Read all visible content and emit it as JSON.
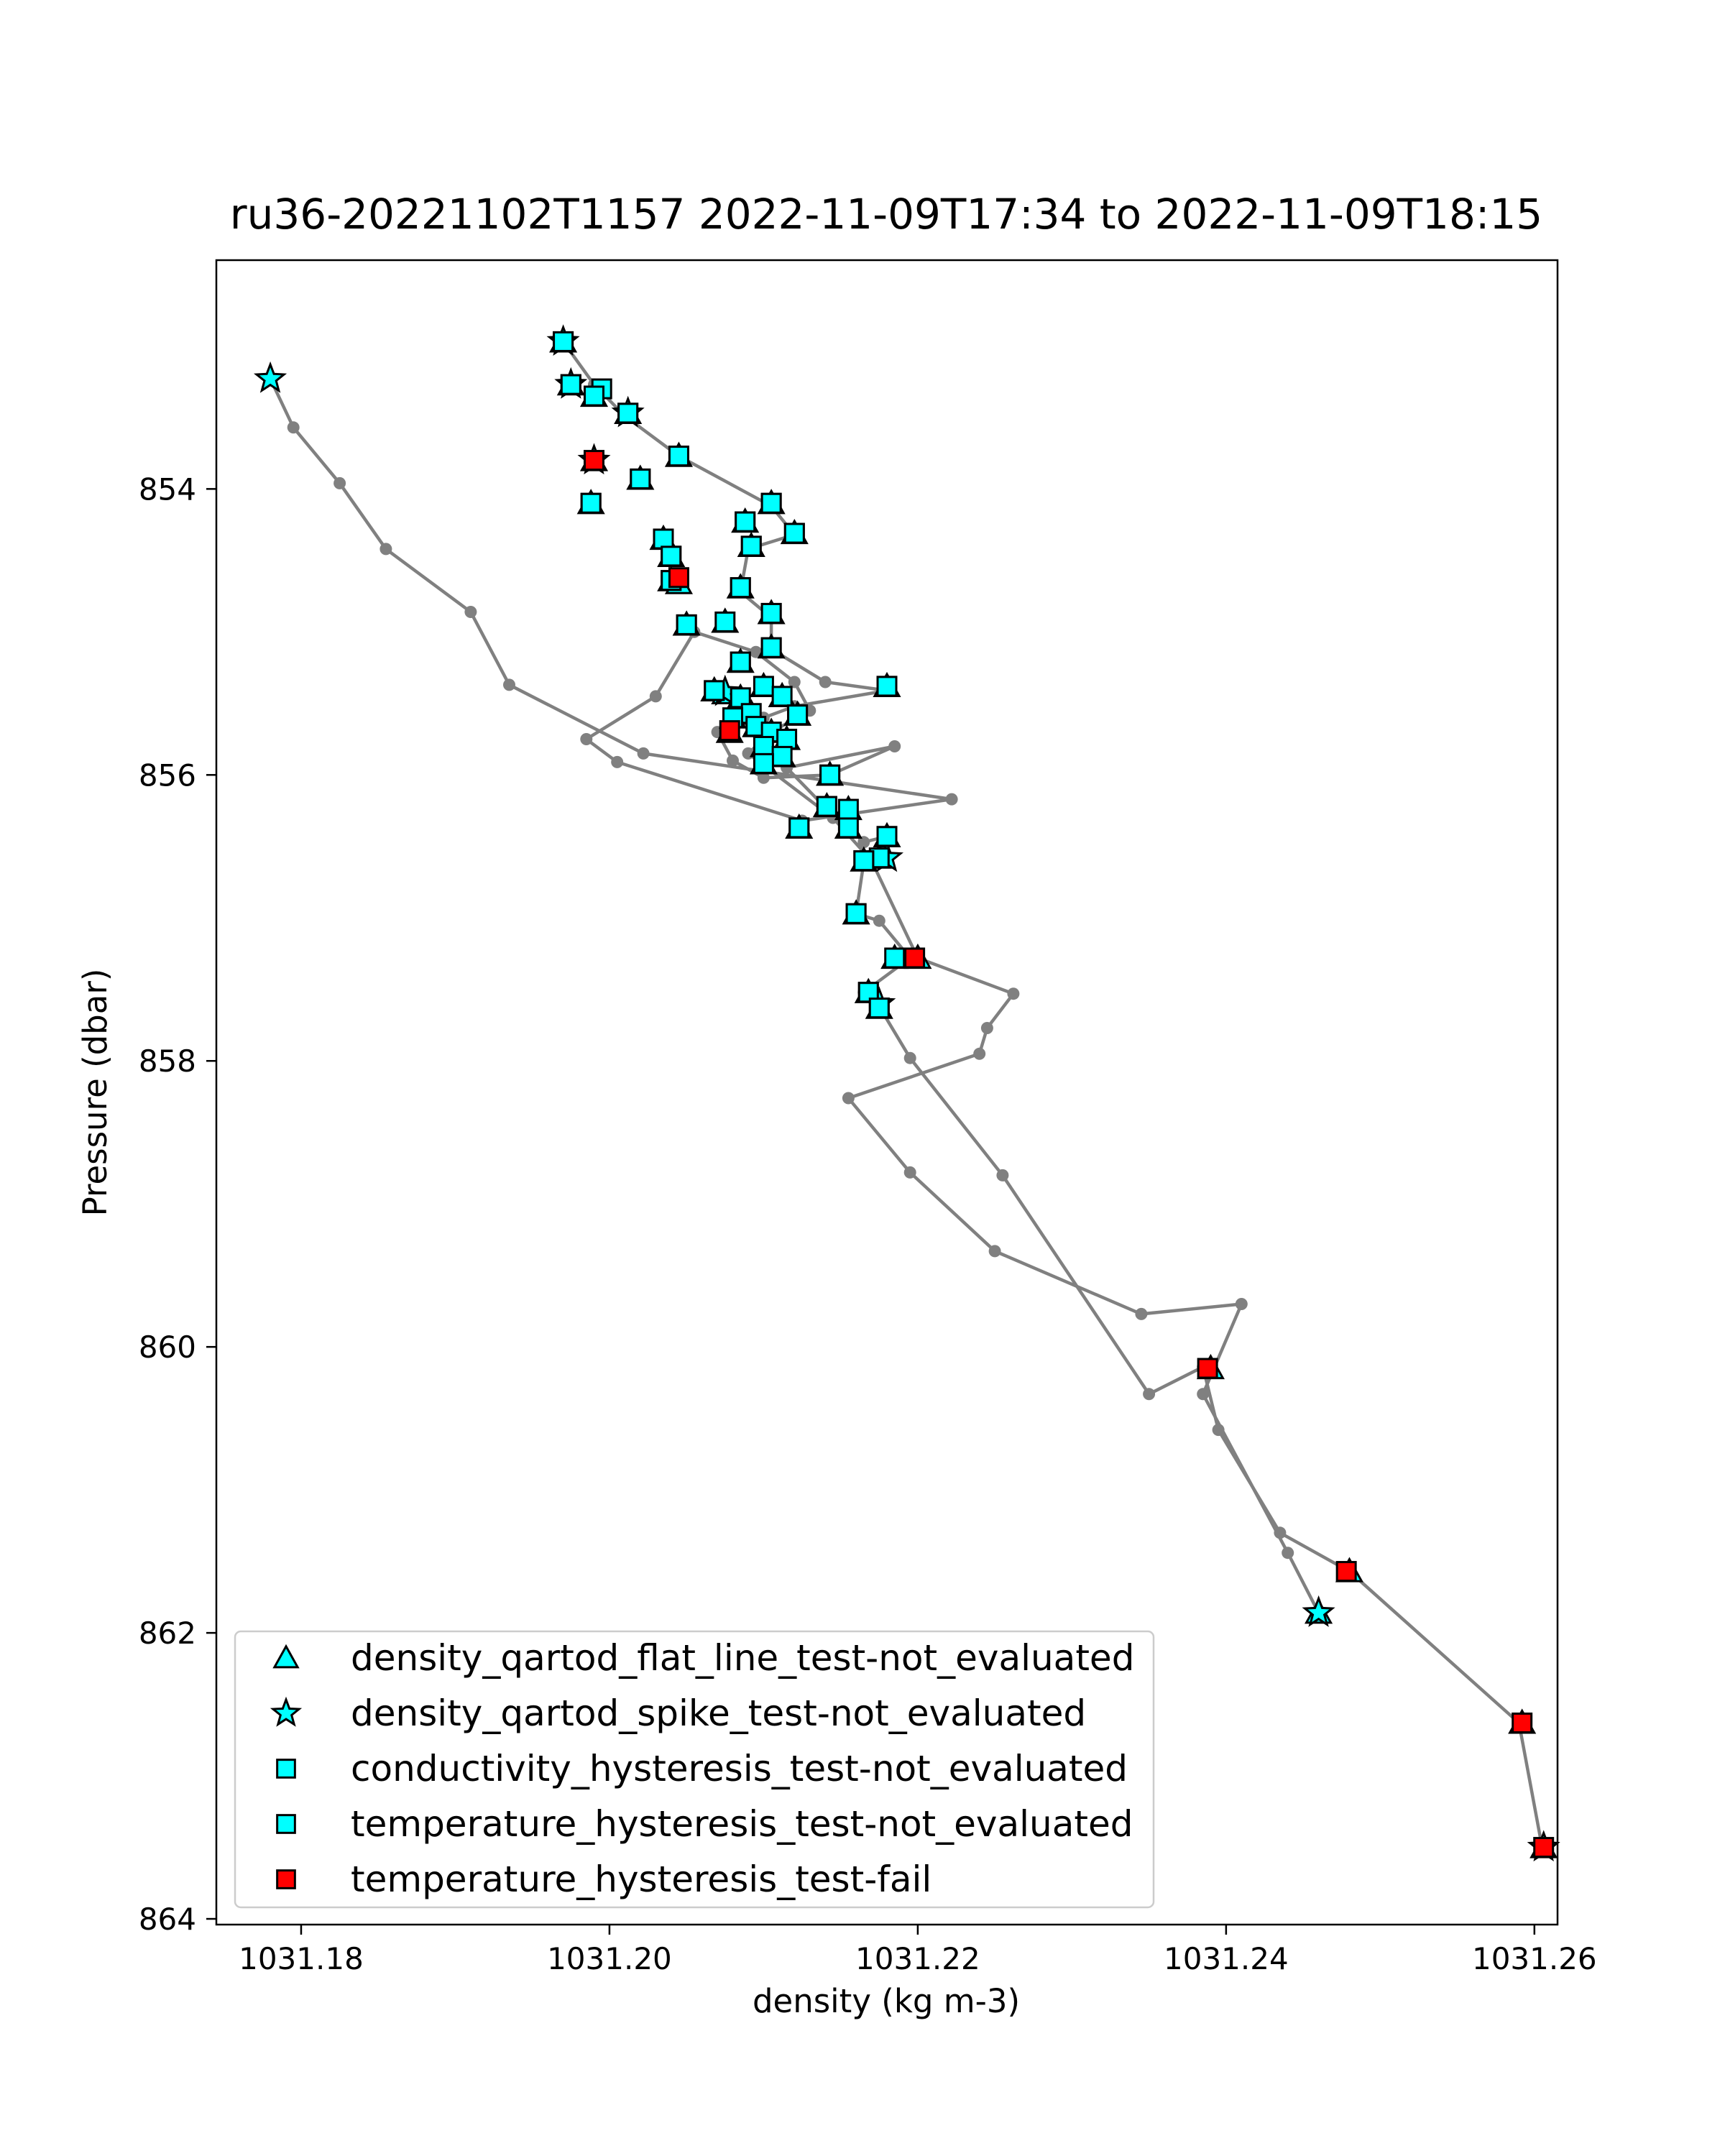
{
  "chart_data": {
    "type": "scatter",
    "title": "ru36-20221102T1157 2022-11-09T17:34 to 2022-11-09T18:15",
    "xlabel": "density (kg m-3)",
    "ylabel": "Pressure (dbar)",
    "xlim": [
      1031.1745,
      1031.2615
    ],
    "ylim": [
      864.04,
      852.4
    ],
    "y_inverted": true,
    "x_ticks": [
      1031.18,
      1031.2,
      1031.22,
      1031.24,
      1031.26
    ],
    "x_tick_labels": [
      "1031.18",
      "1031.20",
      "1031.22",
      "1031.24",
      "1031.26"
    ],
    "y_ticks": [
      854,
      856,
      858,
      860,
      862,
      864
    ],
    "y_tick_labels": [
      "854",
      "856",
      "858",
      "860",
      "862",
      "864"
    ],
    "grid": false,
    "legend_position": "lower-left",
    "colors": {
      "line": "#808080",
      "cyan": "#00ffff",
      "red": "#ff0000",
      "edge": "#000000"
    },
    "profile": {
      "name": "density",
      "points": [
        [
          1031.178,
          853.23
        ],
        [
          1031.1795,
          853.57
        ],
        [
          1031.1825,
          853.96
        ],
        [
          1031.1855,
          854.42
        ],
        [
          1031.191,
          854.86
        ],
        [
          1031.1935,
          855.37
        ],
        [
          1031.2022,
          855.85
        ],
        [
          1031.2222,
          856.17
        ],
        [
          1031.2125,
          856.32
        ],
        [
          1031.2005,
          855.91
        ],
        [
          1031.1985,
          855.75
        ],
        [
          1031.203,
          855.45
        ],
        [
          1031.2055,
          855.0
        ],
        [
          1031.2095,
          855.14
        ],
        [
          1031.212,
          855.35
        ],
        [
          1031.213,
          855.55
        ],
        [
          1031.2105,
          855.7
        ],
        [
          1031.209,
          855.85
        ],
        [
          1031.2145,
          856.3
        ],
        [
          1031.217,
          856.6
        ],
        [
          1031.22,
          857.28
        ],
        [
          1031.2262,
          857.53
        ],
        [
          1031.2245,
          857.77
        ],
        [
          1031.224,
          857.95
        ],
        [
          1031.2155,
          858.26
        ],
        [
          1031.2195,
          858.78
        ],
        [
          1031.225,
          859.33
        ],
        [
          1031.2345,
          859.77
        ],
        [
          1031.241,
          859.7
        ],
        [
          1031.2385,
          860.33
        ],
        [
          1031.244,
          861.44
        ],
        [
          1031.246,
          861.86
        ]
      ],
      "points_descent": [
        [
          1031.197,
          852.97
        ],
        [
          1031.199,
          853.27
        ],
        [
          1031.201,
          853.49
        ],
        [
          1031.2045,
          853.77
        ],
        [
          1031.2105,
          854.12
        ],
        [
          1031.212,
          854.32
        ],
        [
          1031.209,
          854.42
        ],
        [
          1031.2085,
          854.72
        ],
        [
          1031.2105,
          854.9
        ],
        [
          1031.2105,
          855.12
        ],
        [
          1031.214,
          855.35
        ],
        [
          1031.218,
          855.41
        ],
        [
          1031.212,
          855.52
        ],
        [
          1031.21,
          855.6
        ],
        [
          1031.207,
          855.7
        ],
        [
          1031.208,
          855.9
        ],
        [
          1031.21,
          856.02
        ],
        [
          1031.2143,
          856.0
        ],
        [
          1031.2185,
          855.8
        ],
        [
          1031.2115,
          855.95
        ],
        [
          1031.2142,
          856.25
        ],
        [
          1031.2155,
          856.37
        ],
        [
          1031.2165,
          856.47
        ],
        [
          1031.218,
          856.43
        ],
        [
          1031.2175,
          856.58
        ],
        [
          1031.2165,
          856.61
        ],
        [
          1031.216,
          856.97
        ],
        [
          1031.2175,
          857.02
        ],
        [
          1031.2195,
          857.28
        ],
        [
          1031.2165,
          857.52
        ],
        [
          1031.2175,
          857.62
        ],
        [
          1031.2195,
          857.98
        ],
        [
          1031.2255,
          858.8
        ],
        [
          1031.235,
          860.33
        ],
        [
          1031.2385,
          860.14
        ],
        [
          1031.2395,
          860.58
        ],
        [
          1031.2435,
          861.3
        ],
        [
          1031.248,
          861.57
        ],
        [
          1031.259,
          862.63
        ],
        [
          1031.2605,
          863.5
        ]
      ]
    },
    "series": [
      {
        "name": "density_qartod_flat_line_test-not_evaluated",
        "marker": "triangle",
        "color": "#00ffff",
        "points": [
          [
            1031.197,
            852.97
          ],
          [
            1031.1975,
            853.27
          ],
          [
            1031.199,
            853.35
          ],
          [
            1031.2012,
            853.47
          ],
          [
            1031.199,
            853.8
          ],
          [
            1031.1988,
            854.1
          ],
          [
            1031.202,
            853.93
          ],
          [
            1031.2045,
            853.77
          ],
          [
            1031.2105,
            854.1
          ],
          [
            1031.2088,
            854.23
          ],
          [
            1031.2092,
            854.4
          ],
          [
            1031.212,
            854.31
          ],
          [
            1031.2035,
            854.35
          ],
          [
            1031.204,
            854.47
          ],
          [
            1031.204,
            854.64
          ],
          [
            1031.2045,
            854.66
          ],
          [
            1031.2085,
            854.69
          ],
          [
            1031.2105,
            854.87
          ],
          [
            1031.205,
            854.95
          ],
          [
            1031.2075,
            854.93
          ],
          [
            1031.2105,
            855.11
          ],
          [
            1031.2085,
            855.21
          ],
          [
            1031.2068,
            855.41
          ],
          [
            1031.2075,
            855.43
          ],
          [
            1031.2085,
            855.46
          ],
          [
            1031.21,
            855.38
          ],
          [
            1031.2112,
            855.45
          ],
          [
            1031.218,
            855.38
          ],
          [
            1031.2092,
            855.57
          ],
          [
            1031.2122,
            855.58
          ],
          [
            1031.208,
            855.6
          ],
          [
            1031.2095,
            855.66
          ],
          [
            1031.2105,
            855.7
          ],
          [
            1031.2115,
            855.75
          ],
          [
            1031.2078,
            855.7
          ],
          [
            1031.21,
            855.8
          ],
          [
            1031.2112,
            855.87
          ],
          [
            1031.21,
            855.92
          ],
          [
            1031.2143,
            856.0
          ],
          [
            1031.2141,
            856.22
          ],
          [
            1031.2155,
            856.24
          ],
          [
            1031.2123,
            856.37
          ],
          [
            1031.2155,
            856.37
          ],
          [
            1031.218,
            856.43
          ],
          [
            1031.2175,
            856.58
          ],
          [
            1031.2165,
            856.6
          ],
          [
            1031.216,
            856.97
          ],
          [
            1031.22,
            857.28
          ],
          [
            1031.2185,
            857.28
          ],
          [
            1031.2168,
            857.52
          ],
          [
            1031.2175,
            857.63
          ],
          [
            1031.239,
            860.15
          ],
          [
            1031.246,
            861.86
          ],
          [
            1031.248,
            861.57
          ],
          [
            1031.2592,
            862.63
          ],
          [
            1031.2606,
            863.5
          ]
        ]
      },
      {
        "name": "density_qartod_spike_test-not_evaluated",
        "marker": "star",
        "color": "#00ffff",
        "points": [
          [
            1031.178,
            853.23
          ],
          [
            1031.197,
            852.97
          ],
          [
            1031.1975,
            853.27
          ],
          [
            1031.2012,
            853.47
          ],
          [
            1031.199,
            853.8
          ],
          [
            1031.2075,
            855.42
          ],
          [
            1031.218,
            856.58
          ],
          [
            1031.2175,
            857.6
          ],
          [
            1031.246,
            861.86
          ],
          [
            1031.2606,
            863.5
          ]
        ]
      },
      {
        "name": "conductivity_hysteresis_test-not_evaluated",
        "marker": "square",
        "color": "#00ffff",
        "points": [
          [
            1031.197,
            852.97
          ],
          [
            1031.1975,
            853.27
          ],
          [
            1031.199,
            853.35
          ],
          [
            1031.1995,
            853.3
          ],
          [
            1031.2012,
            853.47
          ],
          [
            1031.2045,
            853.77
          ],
          [
            1031.202,
            853.93
          ],
          [
            1031.1988,
            854.1
          ],
          [
            1031.2105,
            854.1
          ],
          [
            1031.2088,
            854.23
          ],
          [
            1031.212,
            854.31
          ],
          [
            1031.2035,
            854.35
          ],
          [
            1031.2092,
            854.4
          ],
          [
            1031.204,
            854.47
          ],
          [
            1031.204,
            854.64
          ],
          [
            1031.2085,
            854.69
          ],
          [
            1031.2105,
            854.87
          ],
          [
            1031.205,
            854.95
          ],
          [
            1031.2075,
            854.93
          ],
          [
            1031.2105,
            855.11
          ],
          [
            1031.2085,
            855.21
          ],
          [
            1031.2068,
            855.41
          ],
          [
            1031.2085,
            855.46
          ],
          [
            1031.21,
            855.38
          ],
          [
            1031.2112,
            855.45
          ],
          [
            1031.218,
            855.38
          ],
          [
            1031.2092,
            855.57
          ],
          [
            1031.2122,
            855.58
          ],
          [
            1031.208,
            855.6
          ],
          [
            1031.2095,
            855.66
          ],
          [
            1031.2105,
            855.7
          ],
          [
            1031.2115,
            855.75
          ],
          [
            1031.21,
            855.8
          ],
          [
            1031.2112,
            855.87
          ],
          [
            1031.21,
            855.92
          ],
          [
            1031.2143,
            856.0
          ],
          [
            1031.2141,
            856.22
          ],
          [
            1031.2155,
            856.24
          ],
          [
            1031.2123,
            856.37
          ],
          [
            1031.2155,
            856.37
          ],
          [
            1031.218,
            856.43
          ],
          [
            1031.2175,
            856.58
          ],
          [
            1031.2165,
            856.6
          ],
          [
            1031.216,
            856.97
          ],
          [
            1031.2185,
            857.28
          ],
          [
            1031.2168,
            857.52
          ],
          [
            1031.2175,
            857.63
          ]
        ]
      },
      {
        "name": "temperature_hysteresis_test-not_evaluated",
        "marker": "square",
        "color": "#00ffff",
        "points": [
          [
            1031.197,
            852.97
          ],
          [
            1031.1975,
            853.27
          ],
          [
            1031.199,
            853.35
          ],
          [
            1031.2012,
            853.47
          ],
          [
            1031.2045,
            853.77
          ],
          [
            1031.202,
            853.93
          ],
          [
            1031.1988,
            854.1
          ],
          [
            1031.2105,
            854.1
          ],
          [
            1031.2088,
            854.23
          ],
          [
            1031.212,
            854.31
          ],
          [
            1031.2035,
            854.35
          ],
          [
            1031.2092,
            854.4
          ],
          [
            1031.204,
            854.47
          ],
          [
            1031.204,
            854.64
          ],
          [
            1031.2085,
            854.69
          ],
          [
            1031.2105,
            854.87
          ],
          [
            1031.205,
            854.95
          ],
          [
            1031.2105,
            855.11
          ],
          [
            1031.2085,
            855.21
          ],
          [
            1031.2068,
            855.41
          ],
          [
            1031.218,
            855.38
          ],
          [
            1031.2122,
            855.58
          ],
          [
            1031.2143,
            856.0
          ],
          [
            1031.2141,
            856.22
          ],
          [
            1031.2123,
            856.37
          ],
          [
            1031.218,
            856.43
          ],
          [
            1031.2165,
            856.6
          ],
          [
            1031.216,
            856.97
          ],
          [
            1031.2168,
            857.52
          ],
          [
            1031.2175,
            857.63
          ]
        ]
      },
      {
        "name": "temperature_hysteresis_test-fail",
        "marker": "square",
        "color": "#ff0000",
        "points": [
          [
            1031.199,
            853.8
          ],
          [
            1031.2045,
            854.62
          ],
          [
            1031.2078,
            855.69
          ],
          [
            1031.2198,
            857.28
          ],
          [
            1031.2388,
            860.15
          ],
          [
            1031.2478,
            861.57
          ],
          [
            1031.2592,
            862.63
          ],
          [
            1031.2606,
            863.5
          ]
        ]
      }
    ]
  }
}
